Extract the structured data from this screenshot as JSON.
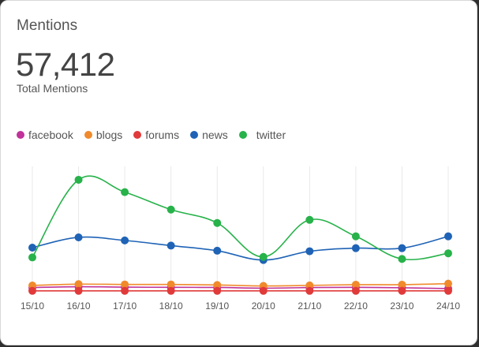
{
  "card": {
    "title": "Mentions",
    "total_value": "57,412",
    "total_label": "Total Mentions"
  },
  "legend": [
    {
      "name": "facebook",
      "color": "#c0339a"
    },
    {
      "name": "blogs",
      "color": "#f08a2c"
    },
    {
      "name": "forums",
      "color": "#e13a3a"
    },
    {
      "name": "news",
      "color": "#1f63b6"
    },
    {
      "name": "twitter",
      "color": "#27b24a"
    }
  ],
  "chart_data": {
    "type": "line",
    "categories": [
      "15/10",
      "16/10",
      "17/10",
      "18/10",
      "19/10",
      "20/10",
      "21/10",
      "22/10",
      "23/10",
      "24/10"
    ],
    "ylim": [
      0,
      1250
    ],
    "grid": {
      "vertical": true,
      "horizontal": false
    },
    "legend_position": "top-left",
    "series": [
      {
        "name": "facebook",
        "color": "#c0339a",
        "values": [
          72,
          80,
          76,
          74,
          73,
          66,
          72,
          74,
          70,
          62
        ]
      },
      {
        "name": "blogs",
        "color": "#f08a2c",
        "values": [
          92,
          105,
          102,
          102,
          97,
          88,
          93,
          100,
          100,
          110
        ]
      },
      {
        "name": "forums",
        "color": "#e13a3a",
        "values": [
          40,
          40,
          40,
          40,
          40,
          40,
          40,
          40,
          40,
          40
        ]
      },
      {
        "name": "news",
        "color": "#1f63b6",
        "values": [
          460,
          560,
          530,
          480,
          430,
          340,
          425,
          455,
          455,
          570
        ]
      },
      {
        "name": "twitter",
        "color": "#27b24a",
        "values": [
          365,
          1120,
          1000,
          830,
          700,
          370,
          730,
          570,
          350,
          405
        ]
      }
    ]
  }
}
